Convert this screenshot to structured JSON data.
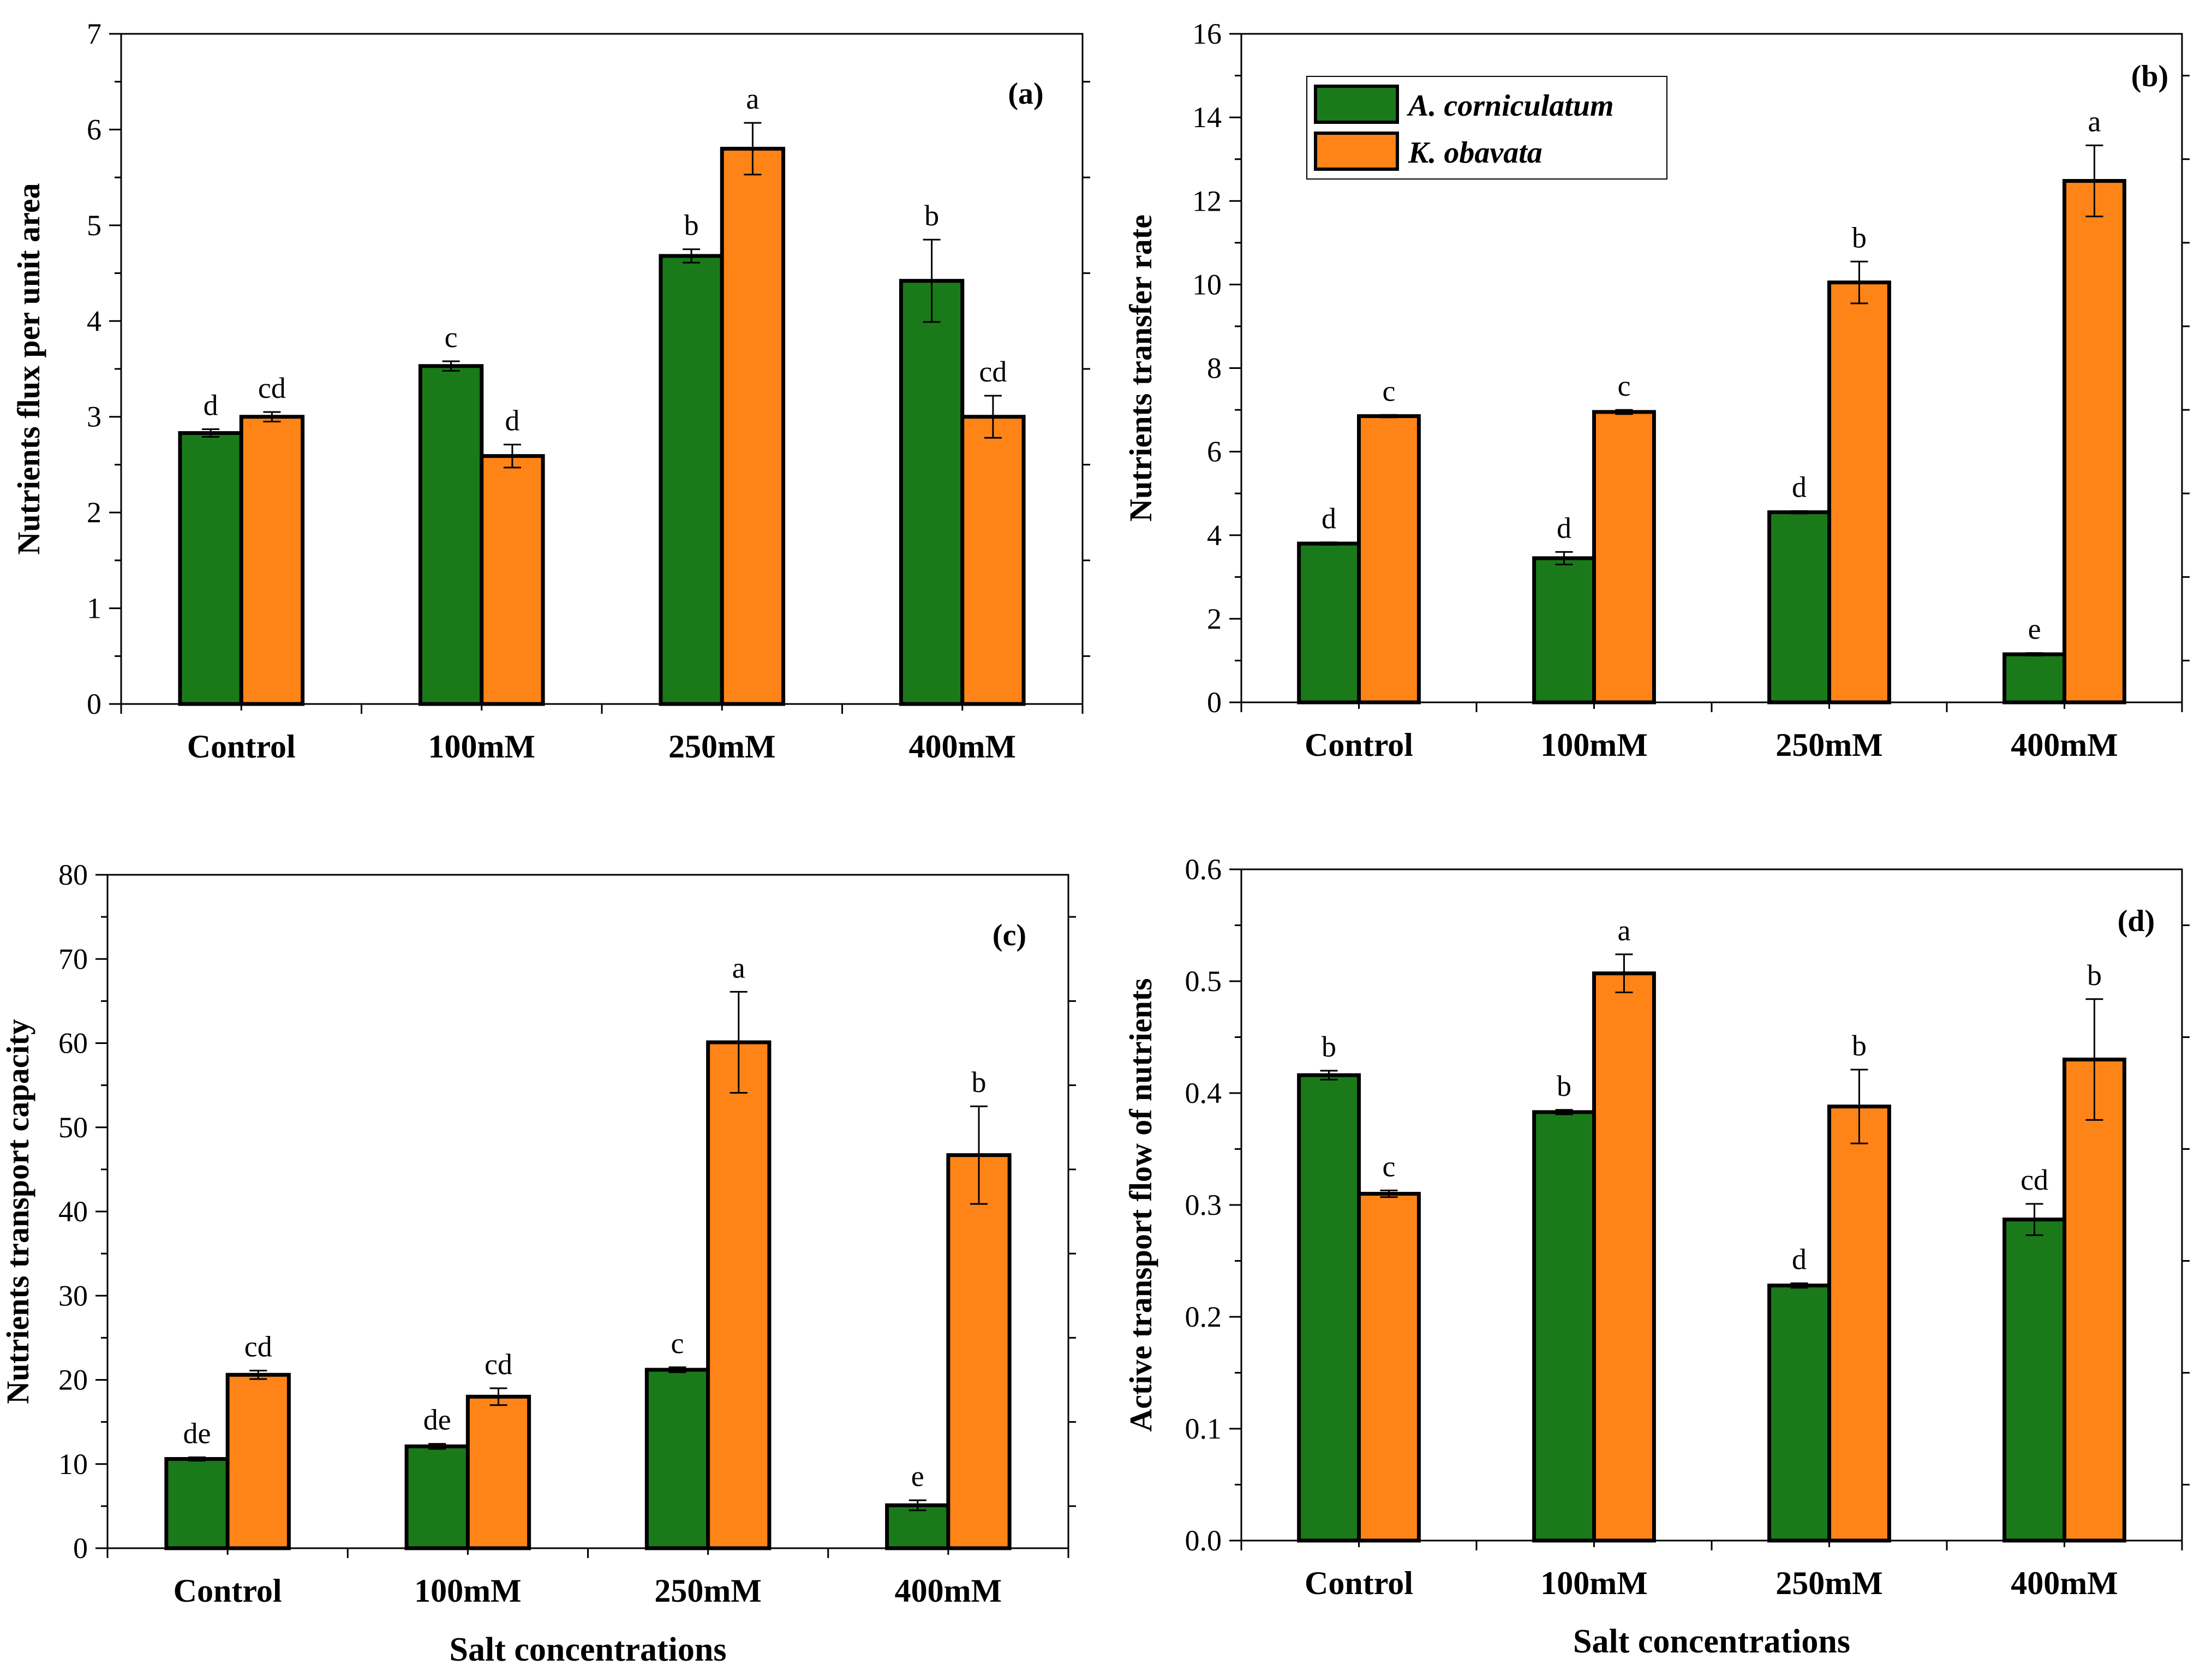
{
  "colors": {
    "a_corniculatum": "#1a7a1a",
    "k_obavata": "#ff8418"
  },
  "legend": {
    "series_a": "A. corniculatum",
    "series_b": "K. obavata"
  },
  "x_axis_title": "Salt concentrations",
  "chart_data": [
    {
      "type": "bar",
      "panel": "(a)",
      "ylabel": "Nutrients flux per unit area",
      "xlabel": "",
      "categories": [
        "Control",
        "100mM",
        "250mM",
        "400mM"
      ],
      "ylim": [
        0,
        7
      ],
      "yticks": [
        "0",
        "1",
        "2",
        "3",
        "4",
        "5",
        "6",
        "7"
      ],
      "ytick_values": [
        0,
        1,
        2,
        3,
        4,
        5,
        6,
        7
      ],
      "series": [
        {
          "name": "A. corniculatum",
          "values": [
            2.83,
            3.53,
            4.68,
            4.42
          ],
          "errors": [
            0.04,
            0.05,
            0.07,
            0.43
          ],
          "letters": [
            "d",
            "c",
            "b",
            "b"
          ]
        },
        {
          "name": "K. obavata",
          "values": [
            3.0,
            2.59,
            5.8,
            3.0
          ],
          "errors": [
            0.05,
            0.12,
            0.27,
            0.22
          ],
          "letters": [
            "cd",
            "d",
            "a",
            "cd"
          ]
        }
      ]
    },
    {
      "type": "bar",
      "panel": "(b)",
      "ylabel": "Nutrients transfer rate",
      "xlabel": "",
      "categories": [
        "Control",
        "100mM",
        "250mM",
        "400mM"
      ],
      "ylim": [
        0,
        16
      ],
      "yticks": [
        "0",
        "2",
        "4",
        "6",
        "8",
        "10",
        "12",
        "14",
        "16"
      ],
      "ytick_values": [
        0,
        2,
        4,
        6,
        8,
        10,
        12,
        14,
        16
      ],
      "legend": "top-left",
      "series": [
        {
          "name": "A. corniculatum",
          "values": [
            3.8,
            3.45,
            4.55,
            1.15
          ],
          "errors": [
            0.03,
            0.15,
            0.03,
            0.03
          ],
          "letters": [
            "d",
            "d",
            "d",
            "e"
          ]
        },
        {
          "name": "K. obavata",
          "values": [
            6.85,
            6.95,
            10.05,
            12.48
          ],
          "errors": [
            0.03,
            0.05,
            0.5,
            0.85
          ],
          "letters": [
            "c",
            "c",
            "b",
            "a"
          ]
        }
      ]
    },
    {
      "type": "bar",
      "panel": "(c)",
      "ylabel": "Nutrients transport capacity",
      "xlabel": "Salt concentrations",
      "categories": [
        "Control",
        "100mM",
        "250mM",
        "400mM"
      ],
      "ylim": [
        0,
        80
      ],
      "yticks": [
        "0",
        "10",
        "20",
        "30",
        "40",
        "50",
        "60",
        "70",
        "80"
      ],
      "ytick_values": [
        0,
        10,
        20,
        30,
        40,
        50,
        60,
        70,
        80
      ],
      "series": [
        {
          "name": "A. corniculatum",
          "values": [
            10.6,
            12.1,
            21.2,
            5.1
          ],
          "errors": [
            0.2,
            0.3,
            0.3,
            0.6
          ],
          "letters": [
            "de",
            "de",
            "c",
            "e"
          ]
        },
        {
          "name": "K. obavata",
          "values": [
            20.6,
            18.0,
            60.1,
            46.7
          ],
          "errors": [
            0.5,
            1.0,
            6.0,
            5.8
          ],
          "letters": [
            "cd",
            "cd",
            "a",
            "b"
          ]
        }
      ]
    },
    {
      "type": "bar",
      "panel": "(d)",
      "ylabel": "Active transport flow of nutrients",
      "xlabel": "Salt concentrations",
      "categories": [
        "Control",
        "100mM",
        "250mM",
        "400mM"
      ],
      "ylim": [
        0,
        0.6
      ],
      "yticks": [
        "0.0",
        "0.1",
        "0.2",
        "0.3",
        "0.4",
        "0.5",
        "0.6"
      ],
      "ytick_values": [
        0,
        0.1,
        0.2,
        0.3,
        0.4,
        0.5,
        0.6
      ],
      "series": [
        {
          "name": "A. corniculatum",
          "values": [
            0.416,
            0.383,
            0.228,
            0.287
          ],
          "errors": [
            0.004,
            0.002,
            0.002,
            0.014
          ],
          "letters": [
            "b",
            "b",
            "d",
            "cd"
          ]
        },
        {
          "name": "K. obavata",
          "values": [
            0.31,
            0.507,
            0.388,
            0.43
          ],
          "errors": [
            0.003,
            0.017,
            0.033,
            0.054
          ],
          "letters": [
            "c",
            "a",
            "b",
            "b"
          ]
        }
      ]
    }
  ]
}
